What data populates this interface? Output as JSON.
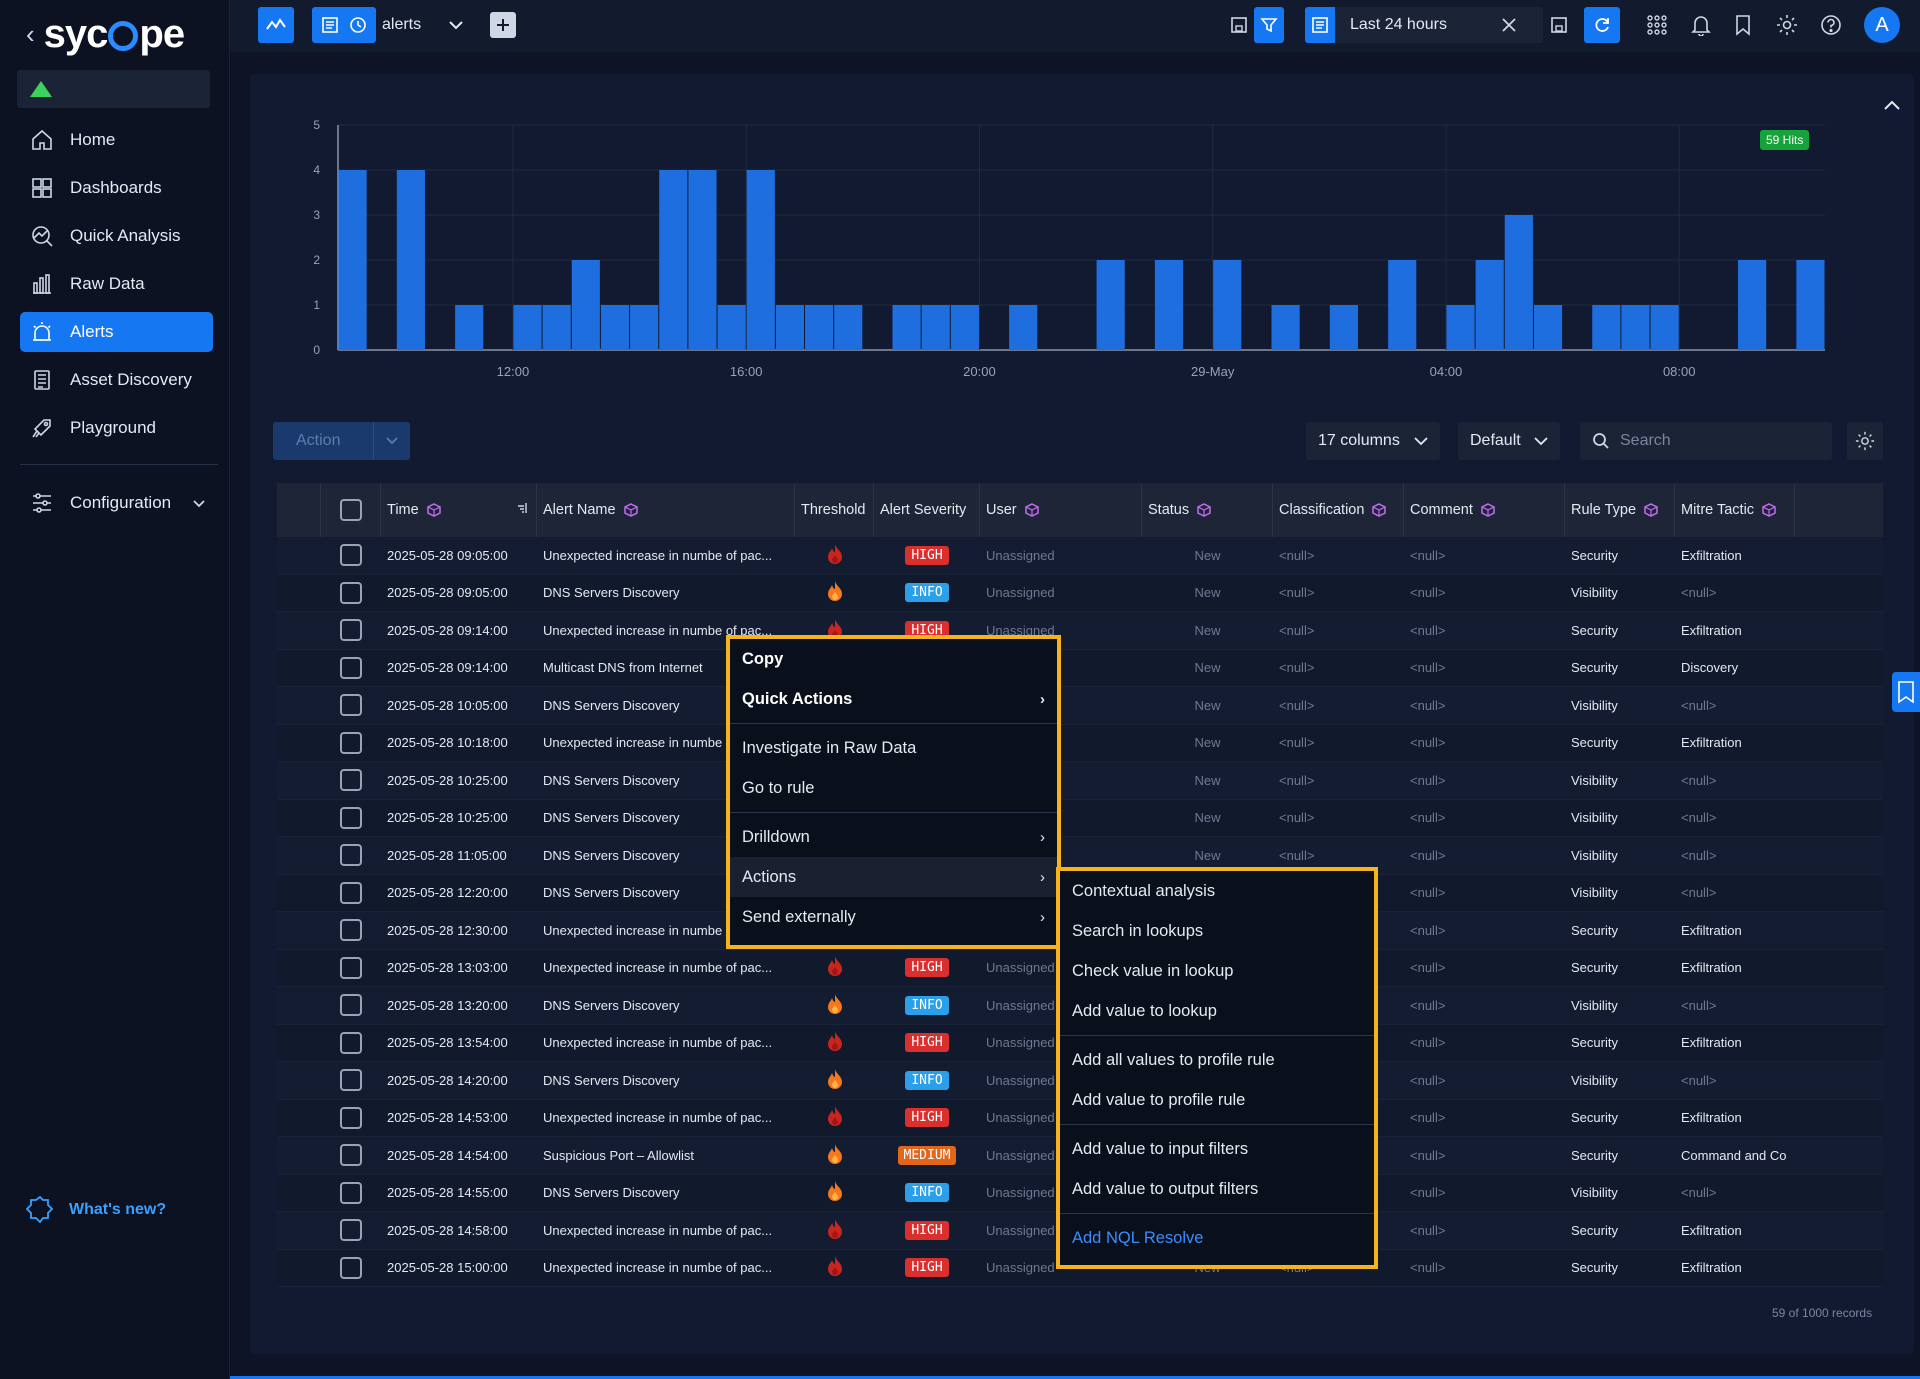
{
  "brand": {
    "name": "syc pe"
  },
  "sidebar": {
    "items": [
      {
        "label": "Home",
        "icon": "home-icon"
      },
      {
        "label": "Dashboards",
        "icon": "dashboards-icon"
      },
      {
        "label": "Quick Analysis",
        "icon": "quick-analysis-icon"
      },
      {
        "label": "Raw Data",
        "icon": "raw-data-icon"
      },
      {
        "label": "Alerts",
        "icon": "alerts-icon",
        "active": true
      },
      {
        "label": "Asset Discovery",
        "icon": "asset-discovery-icon"
      },
      {
        "label": "Playground",
        "icon": "playground-icon"
      }
    ],
    "configuration": "Configuration",
    "whats_new": "What's new?"
  },
  "topbar": {
    "query_name": "alerts",
    "time_range": "Last 24 hours"
  },
  "chart_data": {
    "type": "bar",
    "title": "",
    "hits_label": "59 Hits",
    "ylim": [
      0,
      5
    ],
    "yticks": [
      "0",
      "1",
      "2",
      "3",
      "4",
      "5"
    ],
    "xticks": [
      {
        "label": "12:00",
        "at": 6
      },
      {
        "label": "16:00",
        "at": 14
      },
      {
        "label": "20:00",
        "at": 22
      },
      {
        "label": "29-May",
        "at": 30
      },
      {
        "label": "04:00",
        "at": 38
      },
      {
        "label": "08:00",
        "at": 46
      }
    ],
    "values": [
      4,
      0,
      4,
      0,
      1,
      0,
      1,
      1,
      2,
      1,
      1,
      4,
      4,
      1,
      4,
      1,
      1,
      1,
      0,
      1,
      1,
      1,
      0,
      1,
      0,
      0,
      2,
      0,
      2,
      0,
      2,
      0,
      1,
      0,
      1,
      0,
      2,
      0,
      1,
      2,
      3,
      1,
      0,
      1,
      1,
      1,
      0,
      0,
      2,
      0,
      2
    ],
    "bar_color": "#1f6ee0"
  },
  "controls": {
    "action_label": "Action",
    "columns_label": "17 columns",
    "default_label": "Default",
    "search_placeholder": "Search"
  },
  "table": {
    "columns": [
      "Time",
      "Alert Name",
      "Threshold",
      "Alert Severity",
      "User",
      "Status",
      "Classification",
      "Comment",
      "Rule Type",
      "Mitre Tactic"
    ],
    "rows": [
      {
        "time": "2025-05-28 09:05:00",
        "name": "Unexpected increase in numbe of pac...",
        "thr": "dark",
        "sev": "HIGH",
        "user": "Unassigned",
        "status": "New",
        "cls": "<null>",
        "comment": "<null>",
        "rule": "Security",
        "mitre": "Exfiltration"
      },
      {
        "time": "2025-05-28 09:05:00",
        "name": "DNS Servers Discovery",
        "thr": "orange",
        "sev": "INFO",
        "user": "Unassigned",
        "status": "New",
        "cls": "<null>",
        "comment": "<null>",
        "rule": "Visibility",
        "mitre": "<null>"
      },
      {
        "time": "2025-05-28 09:14:00",
        "name": "Unexpected increase in numbe of pac...",
        "thr": "dark",
        "sev": "HIGH",
        "user": "Unassigned",
        "status": "New",
        "cls": "<null>",
        "comment": "<null>",
        "rule": "Security",
        "mitre": "Exfiltration"
      },
      {
        "time": "2025-05-28 09:14:00",
        "name": "Multicast DNS from Internet",
        "thr": "",
        "sev": "",
        "user": "",
        "status": "New",
        "cls": "<null>",
        "comment": "<null>",
        "rule": "Security",
        "mitre": "Discovery"
      },
      {
        "time": "2025-05-28 10:05:00",
        "name": "DNS Servers Discovery",
        "thr": "",
        "sev": "",
        "user": "",
        "status": "New",
        "cls": "<null>",
        "comment": "<null>",
        "rule": "Visibility",
        "mitre": "<null>"
      },
      {
        "time": "2025-05-28 10:18:00",
        "name": "Unexpected increase in numbe",
        "thr": "",
        "sev": "",
        "user": "",
        "status": "New",
        "cls": "<null>",
        "comment": "<null>",
        "rule": "Security",
        "mitre": "Exfiltration"
      },
      {
        "time": "2025-05-28 10:25:00",
        "name": "DNS Servers Discovery",
        "thr": "",
        "sev": "",
        "user": "",
        "status": "New",
        "cls": "<null>",
        "comment": "<null>",
        "rule": "Visibility",
        "mitre": "<null>"
      },
      {
        "time": "2025-05-28 10:25:00",
        "name": "DNS Servers Discovery",
        "thr": "",
        "sev": "",
        "user": "",
        "status": "New",
        "cls": "<null>",
        "comment": "<null>",
        "rule": "Visibility",
        "mitre": "<null>"
      },
      {
        "time": "2025-05-28 11:05:00",
        "name": "DNS Servers Discovery",
        "thr": "",
        "sev": "",
        "user": "",
        "status": "New",
        "cls": "<null>",
        "comment": "<null>",
        "rule": "Visibility",
        "mitre": "<null>"
      },
      {
        "time": "2025-05-28 12:20:00",
        "name": "DNS Servers Discovery",
        "thr": "",
        "sev": "",
        "user": "",
        "status": "",
        "cls": "",
        "comment": "<null>",
        "rule": "Visibility",
        "mitre": "<null>"
      },
      {
        "time": "2025-05-28 12:30:00",
        "name": "Unexpected increase in numbe",
        "thr": "",
        "sev": "",
        "user": "",
        "status": "",
        "cls": "",
        "comment": "<null>",
        "rule": "Security",
        "mitre": "Exfiltration"
      },
      {
        "time": "2025-05-28 13:03:00",
        "name": "Unexpected increase in numbe of pac...",
        "thr": "dark",
        "sev": "HIGH",
        "user": "Unassigned",
        "status": "",
        "cls": "",
        "comment": "<null>",
        "rule": "Security",
        "mitre": "Exfiltration"
      },
      {
        "time": "2025-05-28 13:20:00",
        "name": "DNS Servers Discovery",
        "thr": "orange",
        "sev": "INFO",
        "user": "Unassigned",
        "status": "",
        "cls": "",
        "comment": "<null>",
        "rule": "Visibility",
        "mitre": "<null>"
      },
      {
        "time": "2025-05-28 13:54:00",
        "name": "Unexpected increase in numbe of pac...",
        "thr": "dark",
        "sev": "HIGH",
        "user": "Unassigned",
        "status": "",
        "cls": "",
        "comment": "<null>",
        "rule": "Security",
        "mitre": "Exfiltration"
      },
      {
        "time": "2025-05-28 14:20:00",
        "name": "DNS Servers Discovery",
        "thr": "orange",
        "sev": "INFO",
        "user": "Unassigned",
        "status": "",
        "cls": "",
        "comment": "<null>",
        "rule": "Visibility",
        "mitre": "<null>"
      },
      {
        "time": "2025-05-28 14:53:00",
        "name": "Unexpected increase in numbe of pac...",
        "thr": "dark",
        "sev": "HIGH",
        "user": "Unassigned",
        "status": "",
        "cls": "",
        "comment": "<null>",
        "rule": "Security",
        "mitre": "Exfiltration"
      },
      {
        "time": "2025-05-28 14:54:00",
        "name": "Suspicious Port – Allowlist",
        "thr": "orange",
        "sev": "MEDIUM",
        "user": "Unassigned",
        "status": "",
        "cls": "",
        "comment": "<null>",
        "rule": "Security",
        "mitre": "Command and Co"
      },
      {
        "time": "2025-05-28 14:55:00",
        "name": "DNS Servers Discovery",
        "thr": "orange",
        "sev": "INFO",
        "user": "Unassigned",
        "status": "",
        "cls": "",
        "comment": "<null>",
        "rule": "Visibility",
        "mitre": "<null>"
      },
      {
        "time": "2025-05-28 14:58:00",
        "name": "Unexpected increase in numbe of pac...",
        "thr": "dark",
        "sev": "HIGH",
        "user": "Unassigned",
        "status": "",
        "cls": "",
        "comment": "<null>",
        "rule": "Security",
        "mitre": "Exfiltration"
      },
      {
        "time": "2025-05-28 15:00:00",
        "name": "Unexpected increase in numbe of pac...",
        "thr": "dark",
        "sev": "HIGH",
        "user": "Unassigned",
        "status": "New",
        "cls": "<null>",
        "comment": "<null>",
        "rule": "Security",
        "mitre": "Exfiltration"
      }
    ],
    "records_label": "59 of 1000 records"
  },
  "context_menu": {
    "copy": "Copy",
    "quick_actions": "Quick Actions",
    "investigate": "Investigate in Raw Data",
    "go_to_rule": "Go to rule",
    "drilldown": "Drilldown",
    "actions": "Actions",
    "send_externally": "Send externally"
  },
  "submenu": {
    "items_a": [
      "Contextual analysis",
      "Search in lookups",
      "Check value in lookup",
      "Add value to lookup"
    ],
    "items_b": [
      "Add all values to profile rule",
      "Add value to profile rule"
    ],
    "items_c": [
      "Add value to input filters",
      "Add value to output filters"
    ],
    "nql": "Add NQL Resolve"
  },
  "colors": {
    "accent": "#1677f2",
    "menu_border": "#f5b41c"
  }
}
